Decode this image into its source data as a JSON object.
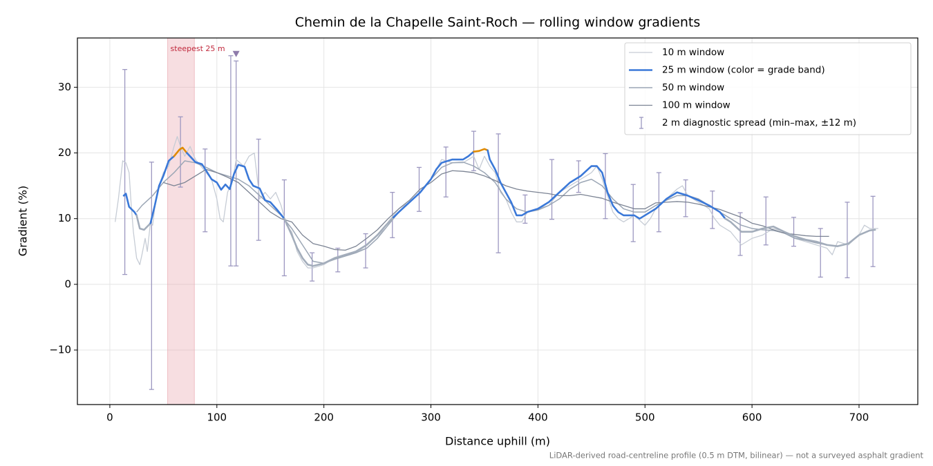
{
  "chart_data": {
    "type": "line",
    "title": "Chemin de la Chapelle Saint-Roch — rolling window gradients",
    "xlabel": "Distance uphill (m)",
    "ylabel": "Gradient (%)",
    "footnote": "LiDAR-derived road-centreline profile (0.5 m DTM, bilinear) — not a surveyed asphalt gradient",
    "xlim": [
      -30.3,
      754.9
    ],
    "ylim": [
      -18.3,
      37.5
    ],
    "xticks": [
      0,
      100,
      200,
      300,
      400,
      500,
      600,
      700
    ],
    "yticks": [
      {
        "value": -10,
        "label": "−10"
      },
      0,
      10,
      20,
      30
    ],
    "grid": true,
    "legend": "upper right",
    "series": [
      {
        "name": "10 m window",
        "color": "#c6ccd5",
        "width": 1.3,
        "x": [
          5,
          8,
          12,
          15,
          18,
          20,
          22,
          25,
          28,
          30,
          33,
          35,
          38,
          40,
          43,
          46,
          50,
          55,
          60,
          63,
          66,
          70,
          75,
          80,
          85,
          90,
          95,
          100,
          103,
          106,
          110,
          115,
          118,
          125,
          130,
          135,
          140,
          145,
          150,
          155,
          160,
          165,
          170,
          175,
          180,
          185,
          190,
          200,
          210,
          220,
          230,
          240,
          250,
          260,
          270,
          280,
          290,
          300,
          310,
          320,
          330,
          340,
          345,
          350,
          355,
          360,
          365,
          370,
          375,
          380,
          385,
          390,
          400,
          410,
          420,
          430,
          440,
          450,
          455,
          460,
          465,
          470,
          475,
          480,
          490,
          500,
          505,
          510,
          520,
          530,
          535,
          540,
          550,
          560,
          565,
          570,
          580,
          590,
          600,
          610,
          620,
          630,
          640,
          650,
          660,
          670,
          675,
          680,
          690,
          700,
          705,
          710,
          718
        ],
        "values": [
          9.5,
          13,
          18.8,
          18.5,
          17,
          12,
          8,
          4,
          3,
          4.5,
          7,
          5,
          9.5,
          9,
          13,
          15,
          17,
          18,
          21,
          22.5,
          21,
          19.5,
          21,
          19,
          18,
          17,
          16,
          13,
          10,
          9.5,
          14,
          16,
          19,
          18,
          19.5,
          20,
          13,
          14,
          13,
          14,
          12,
          9,
          8,
          5,
          3.5,
          2.5,
          2.5,
          3,
          4,
          4.5,
          5,
          5.5,
          7,
          9.5,
          11.5,
          12.5,
          14,
          16,
          19,
          18.5,
          18.5,
          19.5,
          17.5,
          19.5,
          18,
          17,
          14,
          13,
          11,
          9.5,
          9.5,
          11,
          11.5,
          12,
          14,
          15,
          16,
          17,
          18,
          16,
          13.5,
          11,
          10,
          9.5,
          10.5,
          9,
          10,
          11.5,
          13,
          14.5,
          15,
          13.5,
          12.5,
          11.5,
          10,
          9,
          8,
          6,
          7,
          7.5,
          8.5,
          8,
          7,
          6.5,
          6,
          5.5,
          4.5,
          6.5,
          6,
          7.5,
          9,
          8.5,
          8.5
        ]
      },
      {
        "name": "25 m window (color = grade band)",
        "color": "#3a78d8",
        "width": 2.6,
        "grade_bands": [
          {
            "from": 0,
            "color": "#a3adbb"
          },
          {
            "from": 10,
            "color": "#3a78d8"
          },
          {
            "from": 20,
            "color": "#e08a00"
          }
        ],
        "x": [
          13,
          15,
          18,
          23,
          25,
          28,
          32,
          38,
          42,
          46,
          50,
          55,
          60,
          65,
          68,
          72,
          76,
          80,
          86,
          90,
          95,
          100,
          104,
          108,
          112,
          116,
          120,
          126,
          130,
          134,
          140,
          145,
          150,
          156,
          163,
          170,
          175,
          180,
          185,
          190,
          200,
          210,
          220,
          230,
          240,
          250,
          258,
          265,
          270,
          280,
          290,
          300,
          305,
          310,
          320,
          330,
          335,
          340,
          345,
          350,
          353,
          355,
          360,
          365,
          370,
          375,
          380,
          385,
          390,
          400,
          410,
          420,
          430,
          440,
          450,
          455,
          460,
          465,
          470,
          475,
          480,
          490,
          495,
          500,
          510,
          520,
          530,
          540,
          550,
          560,
          570,
          575,
          580,
          590,
          600,
          610,
          620,
          630,
          640,
          650,
          660,
          670,
          680,
          690,
          700,
          710,
          715
        ],
        "values": [
          13.5,
          13.8,
          11.8,
          11,
          10.5,
          8.5,
          8.3,
          9.3,
          12,
          15,
          16.5,
          18.8,
          19.5,
          20.5,
          20.8,
          20,
          19.3,
          18.6,
          18.3,
          17.3,
          16,
          15.5,
          14.4,
          15.2,
          14.5,
          16.8,
          18.2,
          17.9,
          16,
          15,
          14.6,
          12.8,
          12.5,
          11.4,
          10,
          7.5,
          5.5,
          4,
          3,
          2.8,
          3.2,
          4,
          4.5,
          5,
          6,
          7.5,
          9,
          10.2,
          11,
          12.5,
          14,
          16,
          17.5,
          18.5,
          19,
          19,
          19.5,
          20.2,
          20.3,
          20.6,
          20.4,
          19,
          17.5,
          15.5,
          14,
          12.5,
          10.5,
          10.5,
          11,
          11.5,
          12.5,
          14,
          15.5,
          16.5,
          18,
          18,
          17,
          14,
          12,
          11,
          10.5,
          10.5,
          10,
          10.5,
          11.5,
          13,
          14,
          13.5,
          12.8,
          12,
          11,
          10,
          9.5,
          8,
          8,
          8.5,
          8.8,
          8,
          7.3,
          6.8,
          6.5,
          6,
          5.8,
          6.2,
          7.5,
          8.2,
          8.3
        ]
      },
      {
        "name": "50 m window",
        "color": "#9ba6b5",
        "width": 1.5,
        "x": [
          25,
          30,
          40,
          50,
          60,
          70,
          80,
          90,
          100,
          110,
          120,
          130,
          140,
          150,
          160,
          170,
          180,
          190,
          200,
          210,
          220,
          230,
          240,
          250,
          260,
          270,
          280,
          290,
          300,
          310,
          320,
          330,
          340,
          350,
          360,
          370,
          380,
          390,
          400,
          410,
          420,
          430,
          440,
          450,
          460,
          470,
          480,
          490,
          500,
          510,
          520,
          530,
          540,
          550,
          560,
          570,
          580,
          590,
          600,
          610,
          620,
          630,
          640,
          650,
          660,
          670,
          680,
          690,
          700,
          712
        ],
        "values": [
          11,
          12,
          13.5,
          15.5,
          17,
          18.8,
          18.5,
          17.8,
          17,
          16.5,
          16,
          15,
          13.5,
          12,
          10.5,
          8.5,
          6,
          3.5,
          3.2,
          3.8,
          4.3,
          4.8,
          5.5,
          7,
          9,
          11,
          12.5,
          14,
          16,
          17.8,
          18.5,
          18.6,
          18,
          17,
          15.5,
          13,
          11.5,
          11,
          11.3,
          12,
          13,
          14.5,
          15.5,
          16,
          15,
          13,
          11.5,
          11,
          11,
          12,
          12.8,
          13.5,
          13.5,
          13,
          12,
          11,
          10,
          9,
          8.5,
          8.3,
          8.2,
          7.8,
          7,
          6.7,
          6.3,
          6,
          5.8,
          6.2,
          7.5,
          8.3
        ]
      },
      {
        "name": "100 m window",
        "color": "#7b8393",
        "width": 1.3,
        "x": [
          50,
          60,
          70,
          80,
          90,
          100,
          110,
          120,
          130,
          140,
          150,
          160,
          170,
          180,
          190,
          200,
          210,
          220,
          230,
          240,
          250,
          260,
          270,
          280,
          290,
          300,
          310,
          320,
          330,
          340,
          350,
          360,
          370,
          380,
          390,
          400,
          410,
          420,
          430,
          440,
          450,
          460,
          470,
          480,
          490,
          500,
          510,
          520,
          530,
          540,
          550,
          560,
          570,
          580,
          590,
          600,
          610,
          620,
          630,
          640,
          650,
          660,
          672
        ],
        "values": [
          15.5,
          15,
          15.5,
          16.5,
          17.5,
          17,
          16.3,
          15.5,
          14,
          12.5,
          11,
          10,
          9.5,
          7.5,
          6.2,
          5.8,
          5.3,
          5.2,
          5.8,
          7,
          8.3,
          10,
          11.5,
          12.8,
          14.5,
          15.5,
          16.8,
          17.3,
          17.2,
          17,
          16.5,
          15.8,
          15,
          14.5,
          14.2,
          14,
          13.8,
          13.5,
          13.5,
          13.7,
          13.4,
          13.1,
          12.5,
          12,
          11.5,
          11.5,
          12.4,
          12.5,
          12.6,
          12.5,
          12.2,
          11.8,
          11.4,
          10.8,
          10.2,
          9.3,
          8.9,
          8.3,
          7.8,
          7.6,
          7.4,
          7.3,
          7.3
        ]
      }
    ],
    "errorbars": {
      "name": "2 m diagnostic spread (min–max, ±12 m)",
      "color": "#9c97c0",
      "x": [
        14,
        39,
        66,
        89,
        113,
        118,
        139,
        163,
        189,
        213,
        239,
        264,
        289,
        314,
        340,
        363,
        388,
        413,
        438,
        463,
        489,
        513,
        538,
        563,
        589,
        613,
        639,
        664,
        689,
        713
      ],
      "min": [
        1.5,
        -16,
        14.8,
        8,
        2.8,
        2.8,
        6.7,
        1.3,
        0.5,
        1.9,
        2.5,
        7.1,
        11.1,
        13.3,
        17.3,
        4.8,
        9.3,
        9.9,
        14,
        10,
        6.5,
        8,
        10.3,
        8.5,
        4.4,
        6,
        5.8,
        1.1,
        1,
        2.7
      ],
      "max": [
        32.7,
        18.6,
        25.5,
        20.6,
        34.8,
        34,
        22.1,
        15.9,
        4.8,
        5.5,
        7.7,
        14,
        17.8,
        20.9,
        23.3,
        22.9,
        13.6,
        19,
        18.8,
        19.9,
        15.2,
        17,
        15.9,
        14.2,
        10.9,
        13.3,
        10.2,
        8.5,
        12.5,
        13.4
      ]
    },
    "highlight": {
      "x": [
        54,
        79
      ],
      "color": "#e8a0a8",
      "label": "steepest 25 m",
      "label_color": "#c0283c"
    },
    "marker": {
      "x": 118,
      "y": 35,
      "color": "#8e7bab"
    }
  }
}
